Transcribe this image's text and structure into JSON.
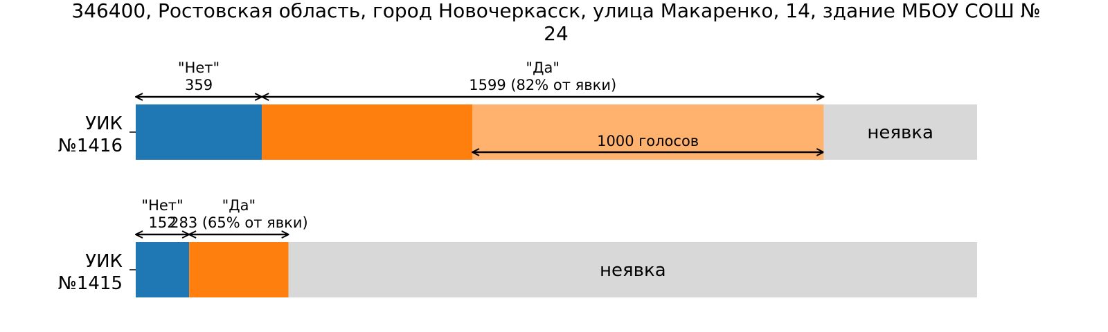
{
  "chart_data": {
    "type": "bar",
    "orientation": "horizontal",
    "stacked": true,
    "title_lines": [
      "346400, Ростовская область, город Новочеркасск, улица Макаренко, 14, здание МБОУ СОШ №",
      "24"
    ],
    "grid": false,
    "colors": {
      "no": "#1f77b4",
      "yes": "#ff7f0e",
      "yes_highlight": "#ffb26e",
      "absent": "#d8d8d8",
      "text": "#000000"
    },
    "absent_label": "неявка",
    "rows": [
      {
        "label_lines": [
          "УИК",
          "№1416"
        ],
        "no": 359,
        "yes": 1599,
        "absent": 437,
        "highlight_votes": 1000,
        "highlight_label": "1000 голосов",
        "no_ann": [
          "\"Нет\"",
          "359"
        ],
        "yes_ann": [
          "\"Да\"",
          "1599 (82% от явки)"
        ]
      },
      {
        "label_lines": [
          "УИК",
          "№1415"
        ],
        "no": 152,
        "yes": 283,
        "absent": 1960,
        "no_ann": [
          "\"Нет\"",
          "152"
        ],
        "yes_ann": [
          "\"Да\"",
          "283 (65% от явки)"
        ]
      }
    ]
  }
}
